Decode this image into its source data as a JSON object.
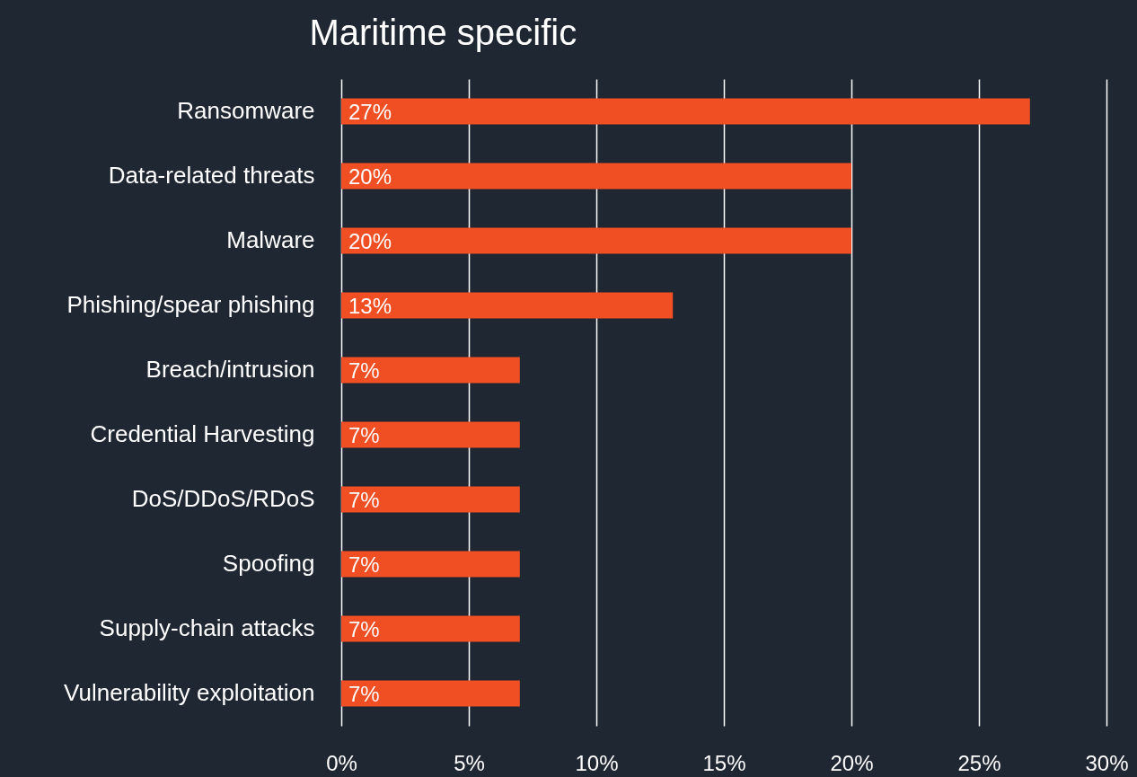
{
  "chart_data": {
    "type": "bar",
    "orientation": "horizontal",
    "title": "Maritime specific",
    "categories": [
      "Ransomware",
      "Data-related threats",
      "Malware",
      "Phishing/spear phishing",
      "Breach/intrusion",
      "Credential Harvesting",
      "DoS/DDoS/RDoS",
      "Spoofing",
      "Supply-chain attacks",
      "Vulnerability exploitation"
    ],
    "values": [
      27,
      20,
      20,
      13,
      7,
      7,
      7,
      7,
      7,
      7
    ],
    "value_labels": [
      "27%",
      "20%",
      "20%",
      "13%",
      "7%",
      "7%",
      "7%",
      "7%",
      "7%",
      "7%"
    ],
    "color": "#f04e23",
    "xlim": [
      0,
      30
    ],
    "xticks": [
      {
        "value": 0,
        "label": "0%"
      },
      {
        "value": 5,
        "label": "5%"
      },
      {
        "value": 10,
        "label": "10%"
      },
      {
        "value": 15,
        "label": "15%"
      },
      {
        "value": 20,
        "label": "20%"
      },
      {
        "value": 25,
        "label": "25%"
      },
      {
        "value": 30,
        "label": "30%"
      }
    ],
    "grid": "x"
  }
}
